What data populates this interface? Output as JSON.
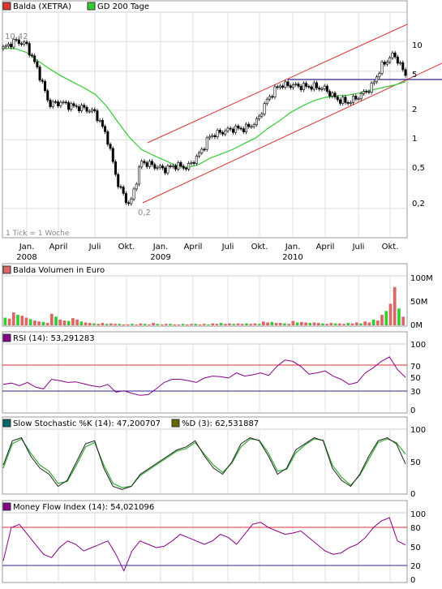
{
  "price_panel": {
    "legend": [
      {
        "label": "Balda (XETRA)",
        "color": "#dd3333"
      },
      {
        "label": "GD 200 Tage",
        "color": "#33cc33"
      }
    ],
    "y_ticks": [
      "10",
      "5",
      "2",
      "1",
      "0,5",
      "0,2"
    ],
    "annotations": {
      "high": "10,42",
      "low": "0,2",
      "tick_note": "1 Tick = 1 Woche"
    },
    "x_labels": [
      {
        "month": "Jan.",
        "year": "2008"
      },
      {
        "month": "April",
        "year": ""
      },
      {
        "month": "Juli",
        "year": ""
      },
      {
        "month": "Okt.",
        "year": ""
      },
      {
        "month": "Jan.",
        "year": "2009"
      },
      {
        "month": "April",
        "year": ""
      },
      {
        "month": "Juli",
        "year": ""
      },
      {
        "month": "Okt.",
        "year": ""
      },
      {
        "month": "Jan.",
        "year": "2010"
      },
      {
        "month": "April",
        "year": ""
      },
      {
        "month": "Juli",
        "year": ""
      },
      {
        "month": "Okt.",
        "year": ""
      }
    ]
  },
  "volume_panel": {
    "legend": {
      "label": "Balda Volumen in Euro",
      "color": "#dd6666"
    },
    "y_ticks": [
      "100M",
      "50M",
      "0M"
    ]
  },
  "rsi_panel": {
    "legend": {
      "label": "RSI (14): 53,291283",
      "color": "#880088"
    },
    "y_ticks": [
      "100",
      "70",
      "50",
      "30",
      "0"
    ]
  },
  "stoch_panel": {
    "legend": [
      {
        "label": "Slow Stochastic %K (14): 47,200707",
        "color": "#006666"
      },
      {
        "label": "%D (3): 62,531887",
        "color": "#666600"
      }
    ],
    "y_ticks": [
      "100",
      "50",
      "0"
    ]
  },
  "mfi_panel": {
    "legend": {
      "label": "Money Flow Index (14): 54,021096",
      "color": "#880088"
    },
    "y_ticks": [
      "100",
      "80",
      "50",
      "20",
      "0"
    ]
  },
  "chart_data": [
    {
      "type": "line",
      "title": "Balda (XETRA)",
      "scale": "log",
      "ylim": [
        0.15,
        15
      ],
      "x": [
        "2007-12",
        "2008-01",
        "2008-02",
        "2008-03",
        "2008-04",
        "2008-05",
        "2008-06",
        "2008-07",
        "2008-08",
        "2008-09",
        "2008-10",
        "2008-11",
        "2008-12",
        "2009-01",
        "2009-02",
        "2009-03",
        "2009-04",
        "2009-05",
        "2009-06",
        "2009-07",
        "2009-08",
        "2009-09",
        "2009-10",
        "2009-11",
        "2009-12",
        "2010-01",
        "2010-02",
        "2010-03",
        "2010-04",
        "2010-05",
        "2010-06",
        "2010-07",
        "2010-08",
        "2010-09",
        "2010-10",
        "2010-11"
      ],
      "series": [
        {
          "name": "Balda (XETRA)",
          "values": [
            8.5,
            10.2,
            9.4,
            5.2,
            2.3,
            2.4,
            2.2,
            2.1,
            1.9,
            1.1,
            0.35,
            0.21,
            0.6,
            0.55,
            0.5,
            0.55,
            0.52,
            0.7,
            1.1,
            1.2,
            1.3,
            1.3,
            1.5,
            2.6,
            3.6,
            3.6,
            3.5,
            3.5,
            3.3,
            2.6,
            2.4,
            2.8,
            3.4,
            5.8,
            7.5,
            4.6
          ]
        },
        {
          "name": "GD 200 Tage",
          "values": [
            8.5,
            8.5,
            7.8,
            6.4,
            5.3,
            4.5,
            3.9,
            3.4,
            2.9,
            2.2,
            1.5,
            1.05,
            0.8,
            0.7,
            0.62,
            0.55,
            0.52,
            0.56,
            0.65,
            0.72,
            0.8,
            0.92,
            1.05,
            1.3,
            1.55,
            1.9,
            2.2,
            2.5,
            2.7,
            2.8,
            2.85,
            3.0,
            3.2,
            3.4,
            3.6,
            3.9
          ]
        }
      ]
    },
    {
      "type": "bar",
      "title": "Balda Volumen in Euro",
      "ylabel": "Volumen",
      "ylim": [
        0,
        100
      ],
      "unit": "M",
      "values": [
        16,
        14,
        27,
        22,
        20,
        16,
        13,
        10,
        8,
        7,
        5,
        24,
        18,
        12,
        10,
        9,
        15,
        12,
        8,
        6,
        5,
        4,
        3,
        5,
        3,
        4,
        3,
        3,
        2,
        2,
        3,
        2,
        4,
        3,
        2,
        5,
        3,
        2,
        3,
        3,
        2,
        2,
        3,
        2,
        3,
        3,
        2,
        3,
        2,
        4,
        3,
        5,
        3,
        4,
        3,
        4,
        3,
        4,
        3,
        4,
        3,
        8,
        6,
        7,
        5,
        5,
        4,
        3,
        9,
        6,
        7,
        6,
        5,
        6,
        5,
        4,
        3,
        5,
        4,
        4,
        3,
        5,
        4,
        6,
        4,
        8,
        6,
        12,
        10,
        22,
        30,
        45,
        80,
        35,
        18
      ]
    },
    {
      "type": "line",
      "title": "RSI (14)",
      "ylim": [
        0,
        100
      ],
      "series": [
        {
          "name": "RSI (14)",
          "values": [
            42,
            44,
            40,
            45,
            38,
            35,
            50,
            48,
            45,
            46,
            43,
            40,
            38,
            42,
            30,
            32,
            28,
            25,
            26,
            35,
            45,
            50,
            50,
            48,
            45,
            52,
            55,
            54,
            52,
            60,
            55,
            57,
            60,
            56,
            70,
            80,
            78,
            70,
            58,
            60,
            63,
            55,
            50,
            42,
            45,
            60,
            68,
            78,
            85,
            65,
            53
          ]
        }
      ]
    },
    {
      "type": "line",
      "title": "Slow Stochastic",
      "ylim": [
        0,
        100
      ],
      "series": [
        {
          "name": "%K (14)",
          "values": [
            45,
            85,
            90,
            60,
            40,
            30,
            10,
            20,
            50,
            80,
            85,
            40,
            10,
            5,
            10,
            30,
            40,
            50,
            60,
            70,
            75,
            85,
            60,
            40,
            30,
            50,
            80,
            90,
            85,
            60,
            30,
            40,
            70,
            80,
            90,
            85,
            40,
            20,
            10,
            30,
            60,
            85,
            90,
            80,
            47
          ]
        },
        {
          "name": "%D (3)",
          "values": [
            40,
            80,
            88,
            65,
            45,
            35,
            15,
            18,
            45,
            75,
            82,
            45,
            15,
            8,
            10,
            28,
            38,
            48,
            58,
            68,
            72,
            82,
            63,
            45,
            33,
            48,
            75,
            88,
            86,
            65,
            35,
            38,
            65,
            78,
            88,
            86,
            45,
            25,
            12,
            28,
            55,
            82,
            88,
            82,
            63
          ]
        }
      ]
    },
    {
      "type": "line",
      "title": "Money Flow Index (14)",
      "ylim": [
        0,
        100
      ],
      "series": [
        {
          "name": "MFI (14)",
          "values": [
            30,
            80,
            85,
            70,
            55,
            40,
            35,
            50,
            60,
            55,
            45,
            50,
            55,
            60,
            40,
            15,
            45,
            60,
            55,
            50,
            52,
            60,
            70,
            65,
            60,
            55,
            60,
            70,
            65,
            55,
            70,
            85,
            88,
            80,
            75,
            70,
            72,
            75,
            65,
            55,
            45,
            40,
            42,
            50,
            55,
            65,
            80,
            90,
            95,
            60,
            54
          ]
        }
      ]
    }
  ]
}
